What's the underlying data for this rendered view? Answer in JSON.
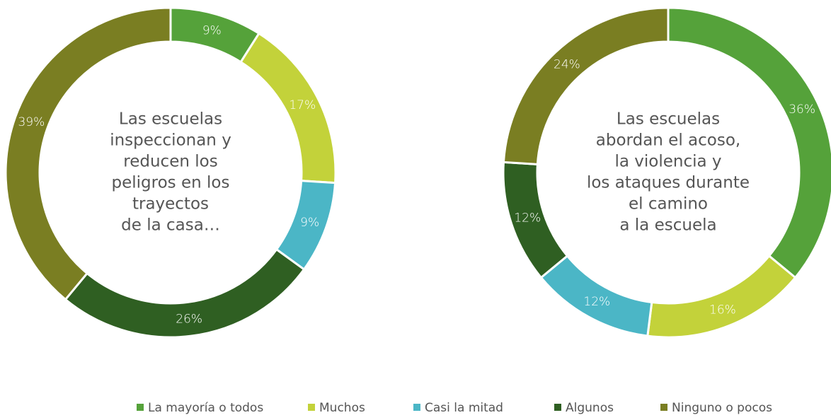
{
  "chart_data": [
    {
      "type": "pie",
      "title": [
        "Las escuelas",
        "inspeccionan y",
        "reducen los",
        "peligros en los",
        "trayectos",
        "de la casa…"
      ],
      "values": [
        9,
        17,
        9,
        26,
        39
      ],
      "value_labels": [
        "9%",
        "17%",
        "9%",
        "26%",
        "39%"
      ]
    },
    {
      "type": "pie",
      "title": [
        "Las escuelas",
        "abordan el acoso,",
        "la violencia y",
        "los ataques durante",
        "el camino",
        "a la escuela"
      ],
      "values": [
        36,
        16,
        12,
        12,
        24
      ],
      "value_labels": [
        "36%",
        "16%",
        "12%",
        "12%",
        "24%"
      ]
    }
  ],
  "legend": [
    {
      "name": "La mayoría o todos",
      "color": "#55a23a"
    },
    {
      "name": "Muchos",
      "color": "#c3d23a"
    },
    {
      "name": "Casi la mitad",
      "color": "#4bb6c6"
    },
    {
      "name": "Algunos",
      "color": "#2f5f22"
    },
    {
      "name": "Ninguno o pocos",
      "color": "#7a7e22"
    }
  ]
}
